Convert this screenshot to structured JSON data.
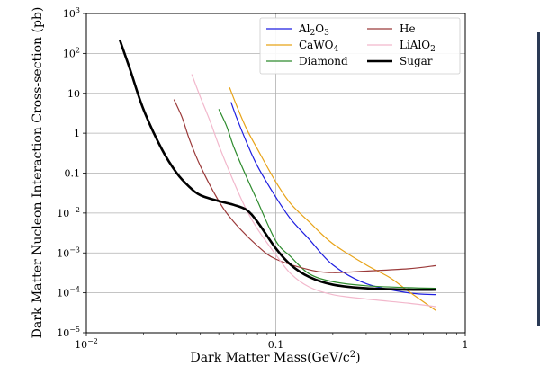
{
  "chart_data": {
    "type": "line",
    "title": "",
    "xlabel": "Dark Matter Mass(GeV/c²)",
    "ylabel": "Dark Matter Nucleon Interaction Cross-section (pb)",
    "xscale": "log",
    "yscale": "log",
    "xlim": [
      0.01,
      1
    ],
    "ylim": [
      1e-05,
      1000
    ],
    "grid": true,
    "legend_position": "top-right",
    "x_ticks": [
      {
        "value": 0.01,
        "base": "10",
        "exp": "−2",
        "text": ""
      },
      {
        "value": 0.1,
        "base": "",
        "exp": "",
        "text": "0.1"
      },
      {
        "value": 1,
        "base": "",
        "exp": "",
        "text": "1"
      }
    ],
    "y_ticks": [
      {
        "value": 1000,
        "base": "10",
        "exp": "3",
        "text": ""
      },
      {
        "value": 100,
        "base": "10",
        "exp": "2",
        "text": ""
      },
      {
        "value": 10,
        "base": "",
        "exp": "",
        "text": "10"
      },
      {
        "value": 1,
        "base": "",
        "exp": "",
        "text": "1"
      },
      {
        "value": 0.1,
        "base": "",
        "exp": "",
        "text": "0.1"
      },
      {
        "value": 0.01,
        "base": "10",
        "exp": "−2",
        "text": ""
      },
      {
        "value": 0.001,
        "base": "10",
        "exp": "−3",
        "text": ""
      },
      {
        "value": 0.0001,
        "base": "10",
        "exp": "−4",
        "text": ""
      },
      {
        "value": 1e-05,
        "base": "10",
        "exp": "−5",
        "text": ""
      }
    ],
    "series": [
      {
        "key": "al2o3",
        "name": "Al2O3",
        "color": "#1f1fe0",
        "linewidth": 1.2,
        "x": [
          0.058,
          0.062,
          0.07,
          0.08,
          0.1,
          0.12,
          0.15,
          0.2,
          0.3,
          0.5,
          0.7
        ],
        "y": [
          6,
          2.5,
          0.6,
          0.15,
          0.025,
          0.007,
          0.0022,
          0.0005,
          0.00017,
          0.0001,
          9e-05
        ]
      },
      {
        "key": "cawo4",
        "name": "CaWO4",
        "color": "#e8a317",
        "linewidth": 1.2,
        "x": [
          0.057,
          0.062,
          0.07,
          0.08,
          0.1,
          0.12,
          0.15,
          0.2,
          0.3,
          0.4,
          0.5,
          0.7
        ],
        "y": [
          14,
          5,
          1.3,
          0.4,
          0.06,
          0.017,
          0.006,
          0.0017,
          0.0005,
          0.00024,
          0.00011,
          3.6e-05
        ]
      },
      {
        "key": "diamond",
        "name": "Diamond",
        "color": "#2e8b2e",
        "linewidth": 1.2,
        "x": [
          0.05,
          0.055,
          0.06,
          0.07,
          0.08,
          0.1,
          0.12,
          0.15,
          0.2,
          0.3,
          0.5,
          0.7
        ],
        "y": [
          4,
          1.5,
          0.45,
          0.08,
          0.02,
          0.002,
          0.0008,
          0.0003,
          0.00019,
          0.00015,
          0.000135,
          0.00013
        ]
      },
      {
        "key": "he",
        "name": "He",
        "color": "#9b3a3a",
        "linewidth": 1.2,
        "x": [
          0.029,
          0.032,
          0.035,
          0.04,
          0.05,
          0.06,
          0.08,
          0.1,
          0.15,
          0.2,
          0.3,
          0.5,
          0.7
        ],
        "y": [
          7,
          2.5,
          0.7,
          0.15,
          0.02,
          0.006,
          0.0015,
          0.0007,
          0.00038,
          0.00032,
          0.00035,
          0.0004,
          0.00048
        ]
      },
      {
        "key": "lialo2",
        "name": "LiAlO2",
        "color": "#f2b8cc",
        "linewidth": 1.2,
        "x": [
          0.036,
          0.04,
          0.045,
          0.05,
          0.06,
          0.07,
          0.08,
          0.1,
          0.12,
          0.15,
          0.2,
          0.3,
          0.5,
          0.7
        ],
        "y": [
          30,
          8,
          2,
          0.5,
          0.06,
          0.012,
          0.004,
          0.0009,
          0.0003,
          0.00014,
          9e-05,
          7e-05,
          5.5e-05,
          4.5e-05
        ]
      },
      {
        "key": "sugar",
        "name": "Sugar",
        "color": "#000000",
        "linewidth": 2.6,
        "x": [
          0.015,
          0.017,
          0.02,
          0.025,
          0.03,
          0.035,
          0.04,
          0.05,
          0.06,
          0.07,
          0.08,
          0.1,
          0.12,
          0.15,
          0.2,
          0.3,
          0.5,
          0.7
        ],
        "y": [
          220,
          40,
          4,
          0.4,
          0.1,
          0.045,
          0.028,
          0.02,
          0.016,
          0.012,
          0.006,
          0.0013,
          0.0005,
          0.00025,
          0.00016,
          0.00013,
          0.00012,
          0.00012
        ]
      }
    ],
    "legend": [
      {
        "series": "al2o3",
        "label_parts": [
          [
            "Al",
            ""
          ],
          [
            "2",
            "sub"
          ],
          [
            "O",
            ""
          ],
          [
            "3",
            "sub"
          ]
        ]
      },
      {
        "series": "cawo4",
        "label_parts": [
          [
            "CaWO",
            ""
          ],
          [
            "4",
            "sub"
          ]
        ]
      },
      {
        "series": "diamond",
        "label_parts": [
          [
            "Diamond",
            ""
          ]
        ]
      },
      {
        "series": "he",
        "label_parts": [
          [
            "He",
            ""
          ]
        ]
      },
      {
        "series": "lialo2",
        "label_parts": [
          [
            "LiAlO",
            ""
          ],
          [
            "2",
            "sub"
          ]
        ]
      },
      {
        "series": "sugar",
        "label_parts": [
          [
            "Sugar",
            ""
          ]
        ]
      }
    ],
    "xlabel_parts": [
      [
        "Dark Matter Mass(GeV/c",
        ""
      ],
      [
        "2",
        "sup"
      ],
      [
        ")",
        ""
      ]
    ]
  }
}
